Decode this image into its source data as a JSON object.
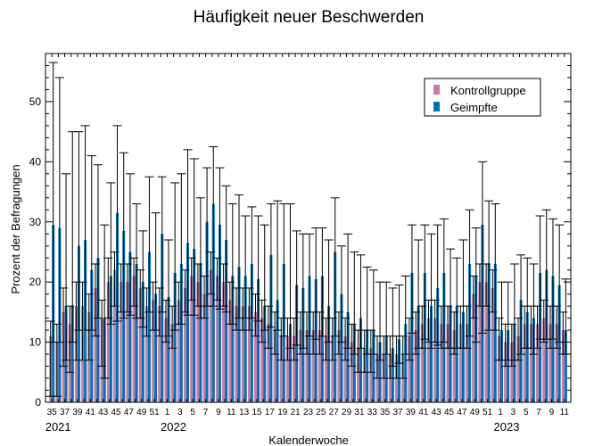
{
  "chart_data": {
    "type": "bar",
    "title": "Häufigkeit neuer Beschwerden",
    "xlabel": "Kalenderwoche",
    "ylabel": "Prozent der Befragungen",
    "ylim": [
      0,
      58
    ],
    "yticks": [
      0,
      10,
      20,
      30,
      40,
      50
    ],
    "grid": false,
    "legend_position": "top-right",
    "weeks": [
      35,
      36,
      37,
      38,
      39,
      40,
      41,
      42,
      43,
      44,
      45,
      46,
      47,
      48,
      49,
      50,
      51,
      52,
      1,
      2,
      3,
      4,
      5,
      6,
      7,
      8,
      9,
      10,
      11,
      12,
      13,
      14,
      15,
      16,
      17,
      18,
      19,
      20,
      21,
      22,
      23,
      24,
      25,
      26,
      27,
      28,
      29,
      30,
      31,
      32,
      33,
      34,
      35,
      36,
      37,
      38,
      39,
      40,
      41,
      42,
      43,
      44,
      45,
      46,
      47,
      48,
      49,
      50,
      51,
      52,
      1,
      2,
      3,
      4,
      5,
      6,
      7,
      8,
      9,
      10,
      11
    ],
    "tick_labels": [
      "35",
      "37",
      "39",
      "41",
      "43",
      "45",
      "47",
      "49",
      "51",
      "1",
      "3",
      "5",
      "7",
      "9",
      "11",
      "13",
      "15",
      "17",
      "19",
      "21",
      "23",
      "25",
      "27",
      "29",
      "31",
      "33",
      "35",
      "37",
      "39",
      "41",
      "43",
      "45",
      "47",
      "49",
      "51",
      "1",
      "3",
      "5",
      "7",
      "9",
      "11"
    ],
    "tick_label_indices": [
      0,
      2,
      4,
      6,
      8,
      10,
      12,
      14,
      16,
      18,
      20,
      22,
      24,
      26,
      28,
      30,
      32,
      34,
      36,
      38,
      40,
      42,
      44,
      46,
      48,
      50,
      52,
      54,
      56,
      58,
      60,
      62,
      64,
      66,
      68,
      70,
      72,
      74,
      76,
      78,
      80
    ],
    "year_labels": [
      {
        "label": "2021",
        "index": 0
      },
      {
        "label": "2022",
        "index": 18
      },
      {
        "label": "2023",
        "index": 70
      }
    ],
    "series": [
      {
        "name": "Kontrollgruppe",
        "color": "#cc79a7",
        "values": [
          11.0,
          10.0,
          15.0,
          13.0,
          16.0,
          16.0,
          15.0,
          19.0,
          14.0,
          20.0,
          22.0,
          20.0,
          20.0,
          21.0,
          19.0,
          16.0,
          17.0,
          16.0,
          14.0,
          13.0,
          17.0,
          19.0,
          21.0,
          20.0,
          18.0,
          22.0,
          21.0,
          20.0,
          17.0,
          16.0,
          16.0,
          16.0,
          15.0,
          14.0,
          13.0,
          12.0,
          11.0,
          11.0,
          11.0,
          12.0,
          12.0,
          12.0,
          12.0,
          11.0,
          11.0,
          12.0,
          11.0,
          10.0,
          9.0,
          9.0,
          9.0,
          8.0,
          8.0,
          8.0,
          8.0,
          8.0,
          11.0,
          12.0,
          13.0,
          14.0,
          14.0,
          13.0,
          13.0,
          12.0,
          13.0,
          13.0,
          18.0,
          20.0,
          20.0,
          19.0,
          11.0,
          10.0,
          10.0,
          11.0,
          13.0,
          13.0,
          13.0,
          14.0,
          13.0,
          13.0,
          12.0
        ],
        "err_low": [
          10.0,
          9.0,
          9.0,
          8.0,
          9.0,
          9.0,
          8.0,
          8.0,
          8.0,
          6.0,
          6.0,
          5.0,
          5.0,
          5.0,
          5.0,
          5.0,
          5.0,
          5.0,
          4.0,
          4.0,
          4.0,
          4.0,
          4.0,
          4.0,
          4.0,
          4.0,
          4.0,
          4.0,
          4.0,
          4.0,
          4.0,
          4.0,
          4.0,
          4.0,
          4.0,
          4.0,
          4.0,
          4.0,
          4.0,
          4.0,
          4.0,
          4.0,
          4.0,
          4.0,
          4.0,
          4.0,
          4.0,
          4.0,
          4.0,
          4.0,
          4.0,
          4.0,
          4.0,
          4.0,
          4.0,
          4.0,
          4.0,
          4.0,
          4.0,
          4.0,
          4.0,
          4.0,
          4.0,
          4.0,
          4.0,
          4.0,
          4.0,
          4.0,
          4.0,
          4.0,
          4.0,
          4.0,
          4.0,
          4.0,
          4.0,
          4.0,
          4.0,
          4.0,
          4.0,
          4.0,
          4.0
        ],
        "err_high": [
          2.5,
          3.0,
          4.0,
          3.0,
          4.0,
          4.0,
          3.0,
          4.0,
          3.0,
          4.0,
          3.0,
          3.0,
          3.0,
          3.0,
          3.0,
          3.0,
          3.0,
          3.0,
          3.0,
          3.0,
          3.0,
          3.0,
          3.0,
          3.0,
          3.0,
          3.0,
          3.0,
          3.0,
          3.0,
          3.0,
          3.0,
          3.0,
          3.0,
          3.0,
          3.0,
          3.0,
          3.0,
          3.0,
          3.0,
          3.0,
          3.0,
          3.0,
          3.0,
          3.0,
          3.0,
          3.0,
          3.0,
          3.0,
          3.0,
          3.0,
          3.0,
          3.0,
          3.0,
          3.0,
          3.0,
          3.0,
          3.0,
          3.0,
          3.0,
          3.0,
          3.0,
          3.0,
          3.0,
          3.0,
          3.0,
          3.0,
          3.0,
          3.0,
          3.0,
          3.0,
          3.0,
          3.0,
          3.0,
          3.0,
          3.0,
          3.0,
          3.0,
          3.0,
          3.0,
          3.0,
          3.0
        ]
      },
      {
        "name": "Geimpfte",
        "color": "#0072b2",
        "values": [
          29.5,
          29.0,
          16.0,
          16.0,
          26.0,
          27.0,
          22.0,
          24.0,
          14.0,
          21.0,
          31.5,
          28.5,
          25.0,
          23.0,
          20.0,
          25.0,
          18.0,
          28.0,
          17.5,
          21.5,
          23.0,
          26.5,
          25.5,
          23.0,
          30.0,
          33.0,
          29.5,
          27.0,
          21.0,
          22.5,
          21.0,
          23.0,
          20.5,
          16.0,
          24.5,
          17.0,
          23.0,
          13.0,
          19.5,
          19.0,
          21.0,
          20.5,
          21.0,
          16.0,
          25.0,
          18.0,
          15.0,
          13.0,
          14.0,
          12.0,
          12.0,
          10.0,
          11.0,
          9.0,
          10.5,
          13.0,
          21.5,
          16.0,
          21.5,
          16.0,
          19.0,
          21.5,
          16.0,
          16.0,
          15.0,
          23.0,
          21.0,
          29.5,
          23.0,
          23.0,
          12.0,
          12.0,
          13.0,
          17.0,
          15.0,
          14.0,
          21.5,
          22.0,
          21.0,
          19.5,
          12.0
        ],
        "err_low": [
          19.5,
          19.0,
          9.0,
          6.0,
          14.0,
          15.0,
          10.0,
          10.0,
          10.0,
          8.0,
          18.0,
          14.5,
          10.5,
          9.0,
          7.5,
          10.0,
          6.0,
          13.0,
          6.5,
          9.5,
          10.0,
          12.0,
          11.0,
          9.0,
          14.0,
          17.0,
          14.0,
          12.0,
          8.0,
          8.5,
          7.0,
          9.0,
          7.0,
          4.0,
          12.0,
          5.0,
          12.0,
          4.0,
          10.0,
          10.0,
          10.0,
          10.0,
          10.0,
          6.0,
          14.0,
          8.0,
          6.0,
          5.0,
          5.0,
          4.0,
          4.0,
          3.0,
          3.0,
          3.0,
          4.0,
          5.0,
          10.0,
          7.0,
          11.0,
          7.0,
          9.5,
          11.5,
          7.0,
          7.0,
          6.0,
          12.0,
          11.0,
          18.0,
          11.0,
          11.0,
          5.0,
          5.0,
          6.0,
          9.0,
          6.0,
          6.0,
          11.0,
          11.5,
          10.5,
          9.5,
          4.0
        ],
        "err_high": [
          27.0,
          25.0,
          22.0,
          29.0,
          19.0,
          19.0,
          19.0,
          15.5,
          15.5,
          15.5,
          14.5,
          13.0,
          13.0,
          10.0,
          8.5,
          12.5,
          13.5,
          9.5,
          9.5,
          15.0,
          15.0,
          15.5,
          15.0,
          11.0,
          9.0,
          9.5,
          9.5,
          9.0,
          12.0,
          12.0,
          10.0,
          9.5,
          10.5,
          13.5,
          8.5,
          16.5,
          10.0,
          20.0,
          9.0,
          9.0,
          7.0,
          8.5,
          8.0,
          11.0,
          9.0,
          8.0,
          13.0,
          12.0,
          10.5,
          10.5,
          10.0,
          10.0,
          9.0,
          10.0,
          9.0,
          8.0,
          8.0,
          11.0,
          8.0,
          12.0,
          10.5,
          9.0,
          9.5,
          8.0,
          12.0,
          9.0,
          8.0,
          10.5,
          10.5,
          10.0,
          8.0,
          8.0,
          10.0,
          7.5,
          9.0,
          9.0,
          9.5,
          10.0,
          9.5,
          10.0,
          8.5
        ]
      }
    ]
  }
}
